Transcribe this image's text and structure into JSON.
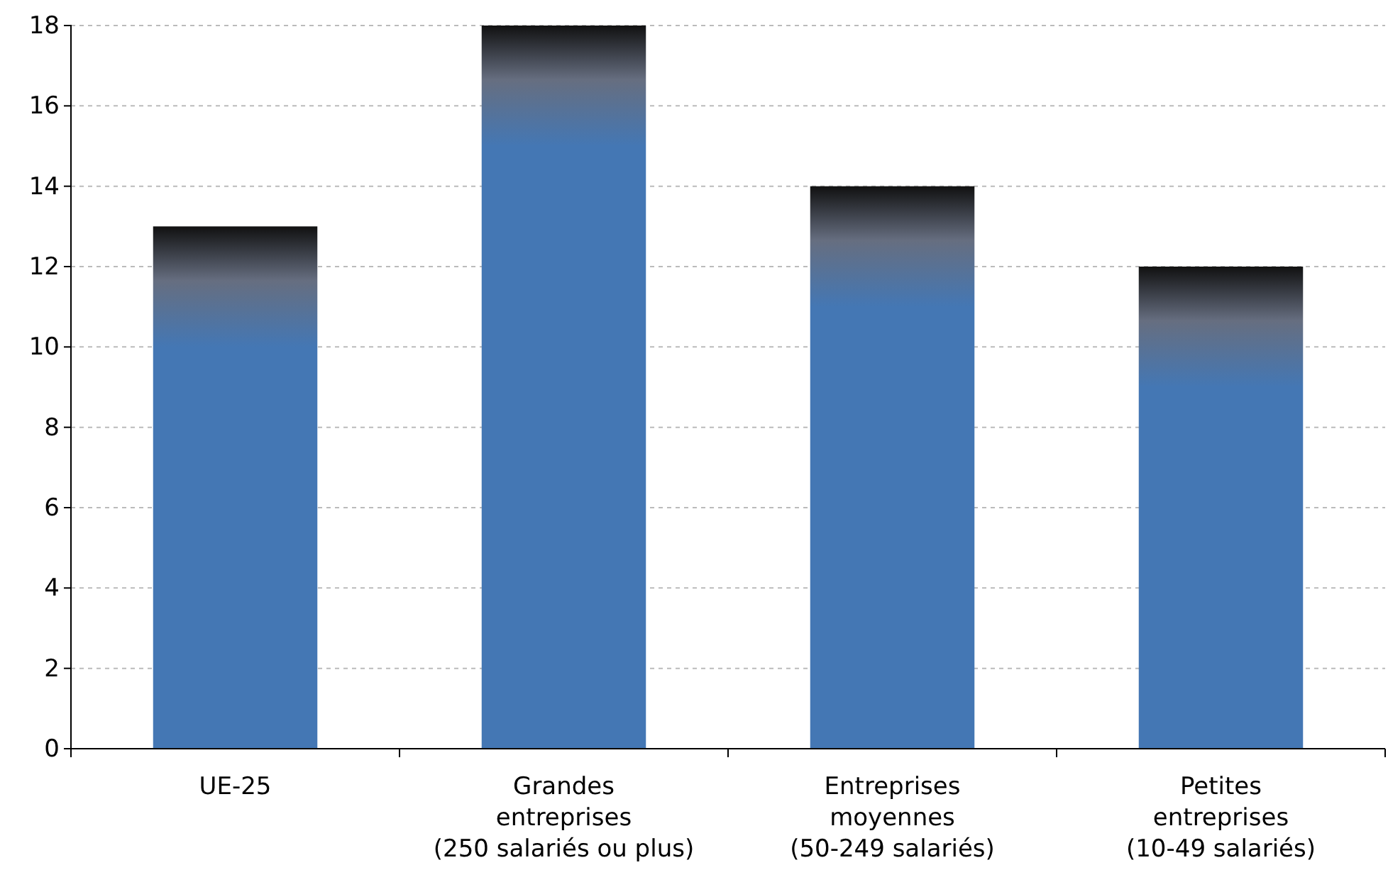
{
  "chart_data": {
    "type": "bar",
    "categories": [
      "UE-25",
      "Grandes\nentreprises\n(250 salariés ou plus)",
      "Entreprises\nmoyennes\n(50-249 salariés)",
      "Petites\nentreprises\n(10-49 salariés)"
    ],
    "values": [
      13,
      18,
      14,
      12
    ],
    "color": "#4477b4",
    "ylim": [
      0,
      18
    ],
    "yticks": [
      0,
      2,
      4,
      6,
      8,
      10,
      12,
      14,
      16,
      18
    ],
    "grid": "y"
  }
}
